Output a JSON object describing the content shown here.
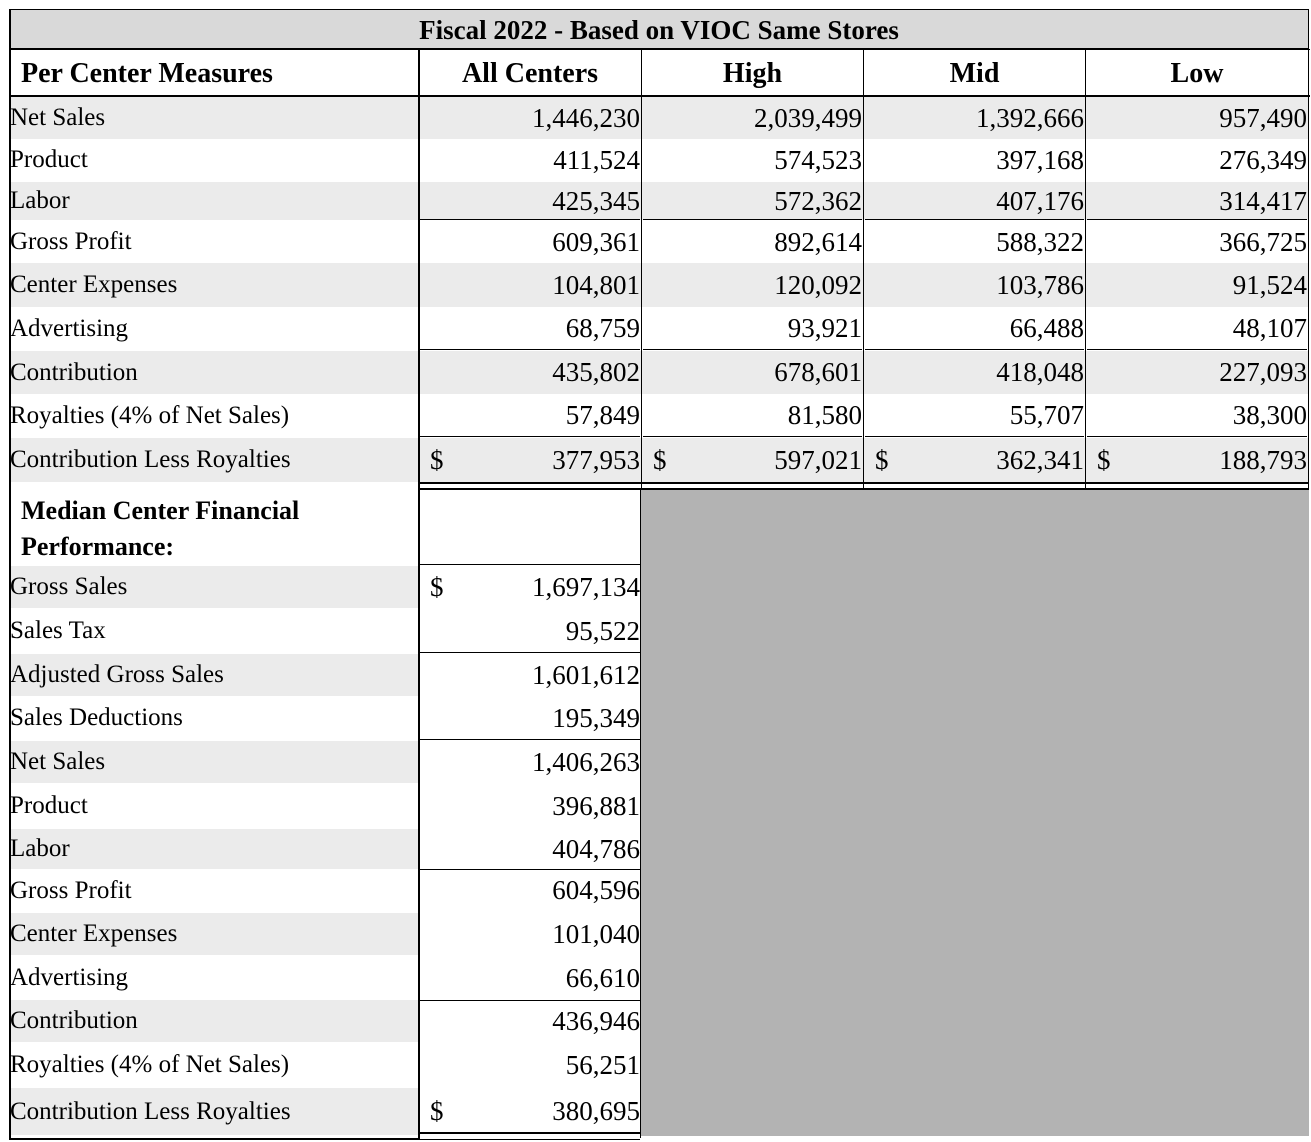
{
  "title": "Fiscal 2022 - Based on VIOC Same Stores",
  "headers": [
    "Per Center Measures",
    "All Centers",
    "High",
    "Mid",
    "Low"
  ],
  "top_rows": [
    {
      "label": "Net Sales",
      "values": [
        "1,446,230",
        "2,039,499",
        "1,392,666",
        "957,490"
      ]
    },
    {
      "label": "Product",
      "values": [
        "411,524",
        "574,523",
        "397,168",
        "276,349"
      ]
    },
    {
      "label": "Labor",
      "values": [
        "425,345",
        "572,362",
        "407,176",
        "314,417"
      ]
    },
    {
      "label": "Gross Profit",
      "values": [
        "609,361",
        "892,614",
        "588,322",
        "366,725"
      ]
    },
    {
      "label": "Center Expenses",
      "values": [
        "104,801",
        "120,092",
        "103,786",
        "91,524"
      ]
    },
    {
      "label": "Advertising",
      "values": [
        "68,759",
        "93,921",
        "66,488",
        "48,107"
      ]
    },
    {
      "label": "Contribution",
      "values": [
        "435,802",
        "678,601",
        "418,048",
        "227,093"
      ]
    },
    {
      "label": "Royalties (4% of Net Sales)",
      "values": [
        "57,849",
        "81,580",
        "55,707",
        "38,300"
      ]
    },
    {
      "label": "Contribution Less Royalties",
      "values": [
        "377,953",
        "597,021",
        "362,341",
        "188,793"
      ],
      "currency": "$"
    }
  ],
  "median_section": {
    "heading_line1": "Median Center Financial",
    "heading_line2": "Performance:",
    "rows": [
      {
        "label": "Gross Sales",
        "value": "1,697,134",
        "currency": "$"
      },
      {
        "label": "Sales Tax",
        "value": "95,522"
      },
      {
        "label": "Adjusted Gross Sales",
        "value": "1,601,612"
      },
      {
        "label": "Sales Deductions",
        "value": "195,349"
      },
      {
        "label": "Net Sales",
        "value": "1,406,263"
      },
      {
        "label": "Product",
        "value": "396,881"
      },
      {
        "label": "Labor",
        "value": "404,786"
      },
      {
        "label": "Gross Profit",
        "value": "604,596"
      },
      {
        "label": "Center Expenses",
        "value": "101,040"
      },
      {
        "label": "Advertising",
        "value": "66,610"
      },
      {
        "label": "Contribution",
        "value": "436,946"
      },
      {
        "label": "Royalties (4% of Net Sales)",
        "value": "56,251"
      },
      {
        "label": "Contribution Less Royalties",
        "value": "380,695",
        "currency": "$"
      }
    ]
  },
  "colors": {
    "title_bg": "#d9d9d9",
    "row_shade": "#ebebeb",
    "empty_block": "#b3b3b3"
  }
}
